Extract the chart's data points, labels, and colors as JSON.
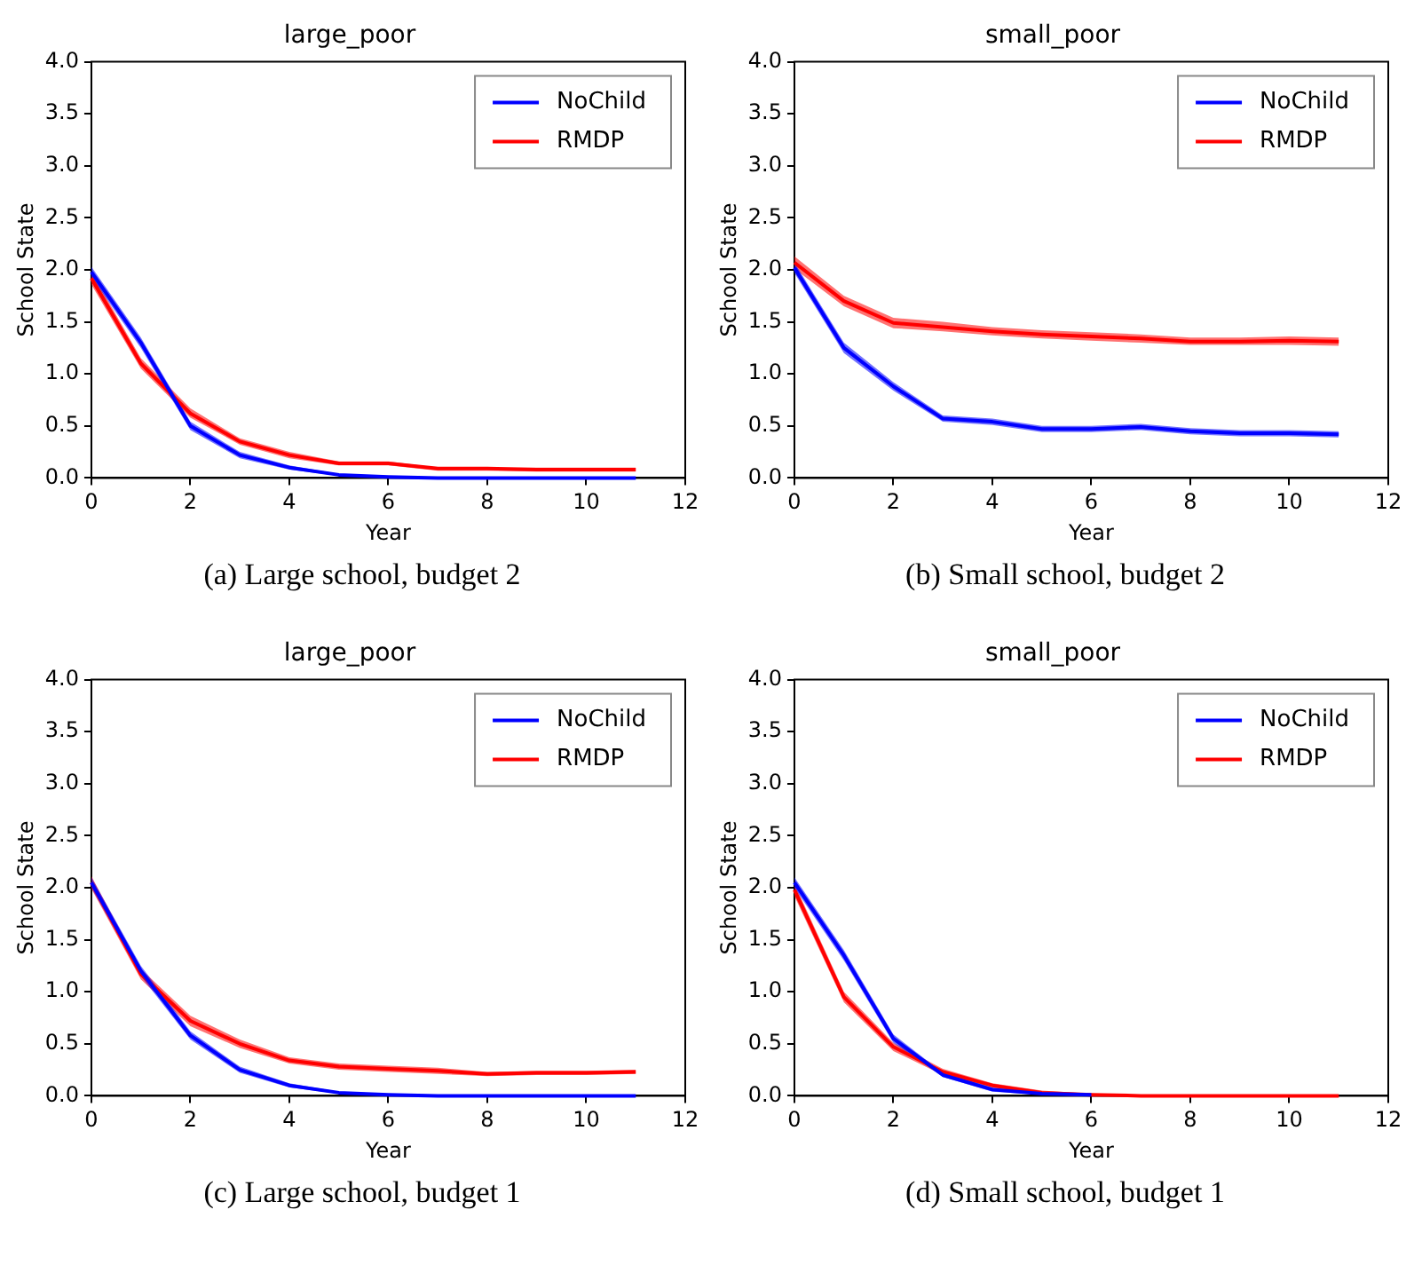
{
  "chart_data": [
    {
      "type": "line",
      "title": "large_poor",
      "xlabel": "Year",
      "ylabel": "School State",
      "annotations": [
        "(a) Large school, budget 2"
      ],
      "x": [
        0,
        1,
        2,
        3,
        4,
        5,
        6,
        7,
        8,
        9,
        10,
        11
      ],
      "xlim": [
        0,
        12
      ],
      "xticks": [
        0,
        2,
        4,
        6,
        8,
        10,
        12
      ],
      "ylim": [
        0,
        4
      ],
      "yticks": [
        {
          "value": 0,
          "label": "0.0"
        },
        {
          "value": 0.5,
          "label": "0.5"
        },
        {
          "value": 1,
          "label": "1.0"
        },
        {
          "value": 1.5,
          "label": "1.5"
        },
        {
          "value": 2,
          "label": "2.0"
        },
        {
          "value": 2.5,
          "label": "2.5"
        },
        {
          "value": 3,
          "label": "3.0"
        },
        {
          "value": 3.5,
          "label": "3.5"
        },
        {
          "value": 4,
          "label": "4.0"
        }
      ],
      "legend": "top right",
      "grid": false,
      "marker": "none",
      "line_style": "solid",
      "series": [
        {
          "name": "NoChild",
          "color": "#0000ff",
          "values": [
            1.98,
            1.3,
            0.5,
            0.22,
            0.1,
            0.03,
            0.01,
            0,
            0,
            0,
            0,
            0
          ],
          "lower": [
            1.93,
            1.25,
            0.46,
            0.19,
            0.08,
            0.02,
            0,
            0,
            0,
            0,
            0,
            0
          ],
          "upper": [
            2.03,
            1.35,
            0.54,
            0.25,
            0.12,
            0.04,
            0.02,
            0.01,
            0.01,
            0.01,
            0.01,
            0.01
          ]
        },
        {
          "name": "RMDP",
          "color": "#ff0000",
          "values": [
            1.92,
            1.1,
            0.62,
            0.35,
            0.22,
            0.14,
            0.14,
            0.09,
            0.09,
            0.08,
            0.08,
            0.08
          ],
          "lower": [
            1.86,
            1.05,
            0.58,
            0.32,
            0.19,
            0.12,
            0.12,
            0.07,
            0.07,
            0.06,
            0.06,
            0.06
          ],
          "upper": [
            1.98,
            1.15,
            0.67,
            0.38,
            0.25,
            0.16,
            0.16,
            0.1,
            0.1,
            0.1,
            0.1,
            0.1
          ]
        }
      ]
    },
    {
      "type": "line",
      "title": "small_poor",
      "xlabel": "Year",
      "ylabel": "School State",
      "annotations": [
        "(b) Small school, budget 2"
      ],
      "x": [
        0,
        1,
        2,
        3,
        4,
        5,
        6,
        7,
        8,
        9,
        10,
        11
      ],
      "xlim": [
        0,
        12
      ],
      "xticks": [
        0,
        2,
        4,
        6,
        8,
        10,
        12
      ],
      "ylim": [
        0,
        4
      ],
      "yticks": [
        {
          "value": 0,
          "label": "0.0"
        },
        {
          "value": 0.5,
          "label": "0.5"
        },
        {
          "value": 1,
          "label": "1.0"
        },
        {
          "value": 1.5,
          "label": "1.5"
        },
        {
          "value": 2,
          "label": "2.0"
        },
        {
          "value": 2.5,
          "label": "2.5"
        },
        {
          "value": 3,
          "label": "3.0"
        },
        {
          "value": 3.5,
          "label": "3.5"
        },
        {
          "value": 4,
          "label": "4.0"
        }
      ],
      "legend": "top right",
      "grid": false,
      "marker": "none",
      "line_style": "solid",
      "series": [
        {
          "name": "NoChild",
          "color": "#0000ff",
          "values": [
            2.02,
            1.25,
            0.88,
            0.57,
            0.54,
            0.47,
            0.47,
            0.49,
            0.45,
            0.43,
            0.43,
            0.42
          ],
          "lower": [
            1.97,
            1.2,
            0.84,
            0.54,
            0.51,
            0.44,
            0.44,
            0.46,
            0.42,
            0.4,
            0.4,
            0.39
          ],
          "upper": [
            2.07,
            1.3,
            0.92,
            0.6,
            0.57,
            0.5,
            0.5,
            0.52,
            0.48,
            0.46,
            0.46,
            0.45
          ]
        },
        {
          "name": "RMDP",
          "color": "#ff0000",
          "values": [
            2.07,
            1.7,
            1.49,
            1.45,
            1.41,
            1.38,
            1.36,
            1.34,
            1.31,
            1.31,
            1.32,
            1.31
          ],
          "lower": [
            2.01,
            1.65,
            1.44,
            1.41,
            1.37,
            1.34,
            1.32,
            1.3,
            1.28,
            1.28,
            1.28,
            1.27
          ],
          "upper": [
            2.13,
            1.75,
            1.54,
            1.5,
            1.45,
            1.42,
            1.4,
            1.38,
            1.35,
            1.35,
            1.36,
            1.35
          ]
        }
      ]
    },
    {
      "type": "line",
      "title": "large_poor",
      "xlabel": "Year",
      "ylabel": "School State",
      "annotations": [
        "(c) Large school, budget 1"
      ],
      "x": [
        0,
        1,
        2,
        3,
        4,
        5,
        6,
        7,
        8,
        9,
        10,
        11
      ],
      "xlim": [
        0,
        12
      ],
      "xticks": [
        0,
        2,
        4,
        6,
        8,
        10,
        12
      ],
      "ylim": [
        0,
        4
      ],
      "yticks": [
        {
          "value": 0,
          "label": "0.0"
        },
        {
          "value": 0.5,
          "label": "0.5"
        },
        {
          "value": 1,
          "label": "1.0"
        },
        {
          "value": 1.5,
          "label": "1.5"
        },
        {
          "value": 2,
          "label": "2.0"
        },
        {
          "value": 2.5,
          "label": "2.5"
        },
        {
          "value": 3,
          "label": "3.0"
        },
        {
          "value": 3.5,
          "label": "3.5"
        },
        {
          "value": 4,
          "label": "4.0"
        }
      ],
      "legend": "top right",
      "grid": false,
      "marker": "none",
      "line_style": "solid",
      "series": [
        {
          "name": "NoChild",
          "color": "#0000ff",
          "values": [
            2.05,
            1.2,
            0.58,
            0.25,
            0.1,
            0.03,
            0.01,
            0,
            0,
            0,
            0,
            0
          ],
          "lower": [
            2,
            1.15,
            0.54,
            0.22,
            0.08,
            0.02,
            0,
            0,
            0,
            0,
            0,
            0
          ],
          "upper": [
            2.1,
            1.25,
            0.62,
            0.28,
            0.12,
            0.04,
            0.02,
            0.01,
            0.01,
            0.01,
            0.01,
            0.01
          ]
        },
        {
          "name": "RMDP",
          "color": "#ff0000",
          "values": [
            2.05,
            1.17,
            0.72,
            0.5,
            0.34,
            0.28,
            0.26,
            0.24,
            0.21,
            0.22,
            0.22,
            0.23
          ],
          "lower": [
            1.99,
            1.12,
            0.67,
            0.46,
            0.31,
            0.25,
            0.23,
            0.21,
            0.19,
            0.2,
            0.2,
            0.21
          ],
          "upper": [
            2.11,
            1.22,
            0.77,
            0.54,
            0.37,
            0.31,
            0.29,
            0.27,
            0.23,
            0.24,
            0.24,
            0.25
          ]
        }
      ]
    },
    {
      "type": "line",
      "title": "small_poor",
      "xlabel": "Year",
      "ylabel": "School State",
      "annotations": [
        "(d) Small school, budget 1"
      ],
      "x": [
        0,
        1,
        2,
        3,
        4,
        5,
        6,
        7,
        8,
        9,
        10,
        11
      ],
      "xlim": [
        0,
        12
      ],
      "xticks": [
        0,
        2,
        4,
        6,
        8,
        10,
        12
      ],
      "ylim": [
        0,
        4
      ],
      "yticks": [
        {
          "value": 0,
          "label": "0.0"
        },
        {
          "value": 0.5,
          "label": "0.5"
        },
        {
          "value": 1,
          "label": "1.0"
        },
        {
          "value": 1.5,
          "label": "1.5"
        },
        {
          "value": 2,
          "label": "2.0"
        },
        {
          "value": 2.5,
          "label": "2.5"
        },
        {
          "value": 3,
          "label": "3.0"
        },
        {
          "value": 3.5,
          "label": "3.5"
        },
        {
          "value": 4,
          "label": "4.0"
        }
      ],
      "legend": "top right",
      "grid": false,
      "marker": "none",
      "line_style": "solid",
      "series": [
        {
          "name": "NoChild",
          "color": "#0000ff",
          "values": [
            2.05,
            1.35,
            0.55,
            0.2,
            0.06,
            0.02,
            0.01,
            null,
            null,
            null,
            null,
            null
          ],
          "lower": [
            2,
            1.3,
            0.51,
            0.18,
            0.04,
            0.01,
            0,
            null,
            null,
            null,
            null,
            null
          ],
          "upper": [
            2.1,
            1.4,
            0.59,
            0.22,
            0.08,
            0.03,
            0.02,
            null,
            null,
            null,
            null,
            null
          ]
        },
        {
          "name": "RMDP",
          "color": "#ff0000",
          "values": [
            1.98,
            0.95,
            0.47,
            0.23,
            0.1,
            0.03,
            0.01,
            0,
            0,
            0,
            0,
            0
          ],
          "lower": [
            1.92,
            0.9,
            0.43,
            0.2,
            0.08,
            0.02,
            0,
            0,
            0,
            0,
            0,
            0
          ],
          "upper": [
            2.04,
            1,
            0.51,
            0.26,
            0.12,
            0.05,
            0.02,
            0.01,
            0.01,
            0.01,
            0.01,
            0.01
          ]
        }
      ]
    }
  ]
}
